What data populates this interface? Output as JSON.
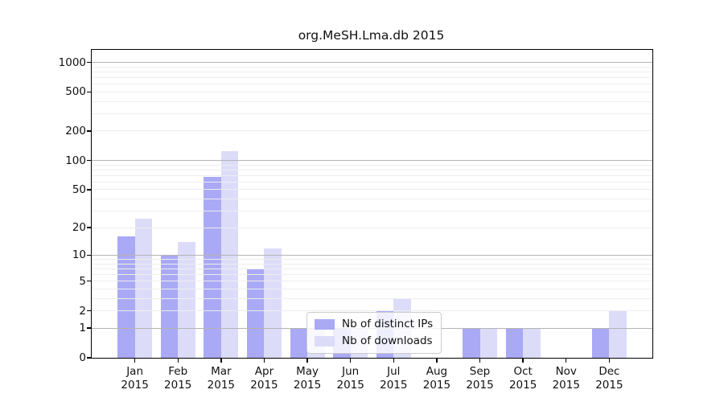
{
  "chart_data": {
    "type": "bar",
    "title": "org.MeSH.Lma.db 2015",
    "categories": [
      "Jan",
      "Feb",
      "Mar",
      "Apr",
      "May",
      "Jun",
      "Jul",
      "Aug",
      "Sep",
      "Oct",
      "Nov",
      "Dec"
    ],
    "x_sublabel": "2015",
    "series": [
      {
        "name": "Nb of distinct IPs",
        "color": "#a9a9f5",
        "values": [
          16,
          10,
          68,
          7,
          1,
          1,
          2,
          0,
          1,
          1,
          0,
          1
        ]
      },
      {
        "name": "Nb of downloads",
        "color": "#dcdcf9",
        "values": [
          25,
          14,
          125,
          12,
          1,
          1,
          3,
          0,
          1,
          1,
          0,
          2
        ]
      }
    ],
    "yscale": "log1p",
    "ylim": [
      0,
      1340
    ],
    "ytick_values": [
      0,
      1,
      2,
      5,
      10,
      20,
      50,
      100,
      200,
      500,
      1000
    ],
    "ytick_labels": [
      "0",
      "1",
      "2",
      "5",
      "10",
      "20",
      "50",
      "100",
      "200",
      "500",
      "1000"
    ],
    "major_gridline_values": [
      1,
      10,
      100,
      1000
    ],
    "minor_gridline_values": [
      2,
      3,
      4,
      5,
      6,
      7,
      8,
      9,
      20,
      30,
      40,
      50,
      60,
      70,
      80,
      90,
      200,
      300,
      400,
      500,
      600,
      700,
      800,
      900
    ],
    "grid": "horizontal",
    "legend_position": "inside-bottom-center"
  }
}
